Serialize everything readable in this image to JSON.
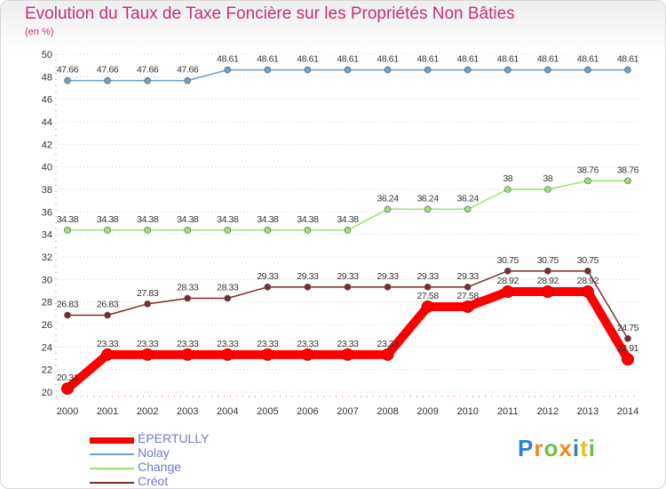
{
  "header": {
    "title": "Evolution du Taux de Taxe Foncière sur les Propriétés Non Bâties",
    "unit": "(en %)"
  },
  "chart_data": {
    "type": "line",
    "title": "Evolution du Taux de Taxe Foncière sur les Propriétés Non Bâties",
    "ylabel": "(en %)",
    "xlabel": "",
    "ylim": [
      20,
      50
    ],
    "yticks": [
      20,
      22,
      24,
      26,
      28,
      30,
      32,
      34,
      36,
      38,
      40,
      42,
      44,
      46,
      48,
      50
    ],
    "categories": [
      "2000",
      "2001",
      "2002",
      "2003",
      "2004",
      "2005",
      "2006",
      "2007",
      "2008",
      "2009",
      "2010",
      "2011",
      "2012",
      "2013",
      "2014"
    ],
    "series": [
      {
        "name": "ÉPERTULLY",
        "color": "#ff0000",
        "values": [
          20.31,
          23.33,
          23.33,
          23.33,
          23.33,
          23.33,
          23.33,
          23.33,
          23.33,
          27.58,
          27.58,
          28.92,
          28.92,
          28.92,
          22.91
        ],
        "labels": [
          "20.31",
          "23.33",
          "23.33",
          "23.33",
          "23.33",
          "23.33",
          "23.33",
          "23.33",
          "23.33",
          "27.58",
          "27.58",
          "28.92",
          "28.92",
          "28.92",
          "22.91"
        ]
      },
      {
        "name": "Nolay",
        "color": "#6aa2d0",
        "values": [
          47.66,
          47.66,
          47.66,
          47.66,
          48.61,
          48.61,
          48.61,
          48.61,
          48.61,
          48.61,
          48.61,
          48.61,
          48.61,
          48.61,
          48.61
        ],
        "labels": [
          "47.66",
          "47.66",
          "47.66",
          "47.66",
          "48.61",
          "48.61",
          "48.61",
          "48.61",
          "48.61",
          "48.61",
          "48.61",
          "48.61",
          "48.61",
          "48.61",
          "48.61"
        ]
      },
      {
        "name": "Change",
        "color": "#9fde78",
        "values": [
          34.38,
          34.38,
          34.38,
          34.38,
          34.38,
          34.38,
          34.38,
          34.38,
          36.24,
          36.24,
          36.24,
          38,
          38,
          38.76,
          38.76
        ],
        "labels": [
          "34.38",
          "34.38",
          "34.38",
          "34.38",
          "34.38",
          "34.38",
          "34.38",
          "34.38",
          "36.24",
          "36.24",
          "36.24",
          "38",
          "38",
          "38.76",
          "38.76"
        ]
      },
      {
        "name": "Créot",
        "color": "#7b2c2c",
        "values": [
          26.83,
          26.83,
          27.83,
          28.33,
          28.33,
          29.33,
          29.33,
          29.33,
          29.33,
          29.33,
          29.33,
          30.75,
          30.75,
          30.75,
          24.75
        ],
        "labels": [
          "26.83",
          "26.83",
          "27.83",
          "28.33",
          "28.33",
          "29.33",
          "29.33",
          "29.33",
          "29.33",
          "29.33",
          "29.33",
          "30.75",
          "30.75",
          "30.75",
          "24.75"
        ]
      }
    ]
  },
  "legend": {
    "items": [
      {
        "label": "ÉPERTULLY",
        "color": "#ff0000"
      },
      {
        "label": "Nolay",
        "color": "#6aa2d0"
      },
      {
        "label": "Change",
        "color": "#9fde78"
      },
      {
        "label": "Créot",
        "color": "#7b2c2c"
      }
    ]
  },
  "logo": {
    "text": "Proxiti"
  }
}
